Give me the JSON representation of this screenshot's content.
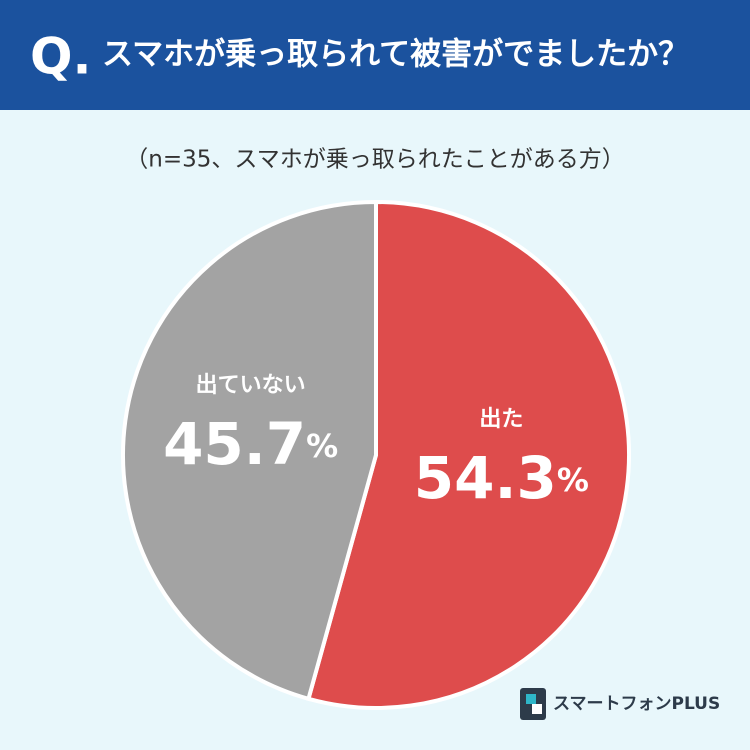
{
  "chart_data": {
    "type": "pie",
    "title_prefix": "Q.",
    "title": "スマホが乗っ取られて被害がでましたか？",
    "subtitle": "（n=35、スマホが乗っ取られたことがある方）",
    "categories": [
      "出た",
      "出ていない"
    ],
    "values": [
      54.3,
      45.7
    ],
    "value_labels": [
      "54.3%",
      "45.7%"
    ],
    "colors": [
      "#de4c4c",
      "#a3a3a3"
    ],
    "logo": "スマートフォンPLUS"
  }
}
